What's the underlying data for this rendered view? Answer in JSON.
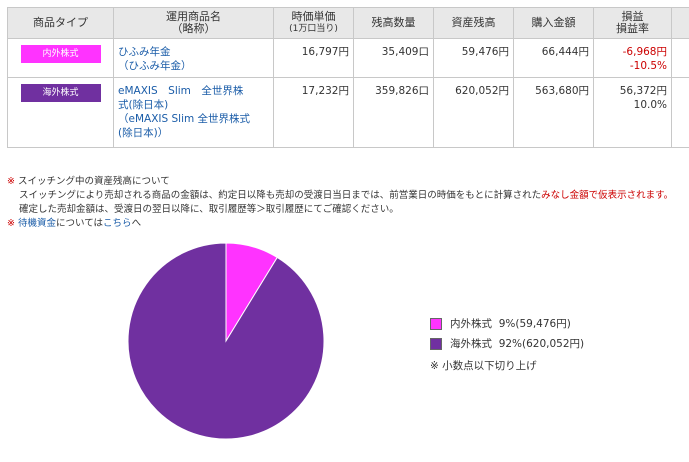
{
  "table": {
    "headers": {
      "type": "商品タイプ",
      "name_l1": "運用商品名",
      "name_l2": "（略称）",
      "price_l1": "時価単価",
      "price_l2": "(1万口当り)",
      "qty": "残高数量",
      "balance": "資産残高",
      "cost": "購入金額",
      "pl_l1": "損益",
      "pl_l2": "損益率"
    },
    "rows": [
      {
        "badge": "内外株式",
        "name_l1": "ひふみ年金",
        "name_l2": "（ひふみ年金）",
        "name_l3": "",
        "name_l4": "",
        "price": "16,797円",
        "qty": "35,409口",
        "balance": "59,476円",
        "cost": "66,444円",
        "pl": "-6,968円",
        "pl_rate": "-10.5%"
      },
      {
        "badge": "海外株式",
        "name_l1": "eMAXIS　Slim　全世界株",
        "name_l2": "式(除日本)",
        "name_l3": "（eMAXIS Slim 全世界株式",
        "name_l4": "(除日本)）",
        "price": "17,232円",
        "qty": "359,826口",
        "balance": "620,052円",
        "cost": "563,680円",
        "pl": "56,372円",
        "pl_rate": "10.0%"
      }
    ]
  },
  "notes": {
    "mark": "※",
    "line1": "スイッチング中の資産残高について",
    "line2_a": "スイッチングにより売却される商品の金額は、約定日以降も売却の受渡日当日までは、前営業日の時価をもとに計算された",
    "line2_b": "みなし金額で仮表示されます。",
    "line3": "確定した売却金額は、受渡日の翌日以降に、取引履歴等＞取引履歴にてご確認ください。",
    "line4_link": "待機資金",
    "line4_mid": "については",
    "line4_link2": "こちら",
    "line4_end": "へ"
  },
  "legend": {
    "items": [
      {
        "label": "内外株式",
        "pct": "9%",
        "amount": "(59,476円)",
        "color": "#ff33ff"
      },
      {
        "label": "海外株式",
        "pct": "92%",
        "amount": "(620,052円)",
        "color": "#7030a0"
      }
    ],
    "footnote": "※ 小数点以下切り上げ"
  },
  "chart_data": {
    "type": "pie",
    "categories": [
      "内外株式",
      "海外株式"
    ],
    "values": [
      59476,
      620052
    ],
    "colors": [
      "#ff33ff",
      "#7030a0"
    ]
  }
}
